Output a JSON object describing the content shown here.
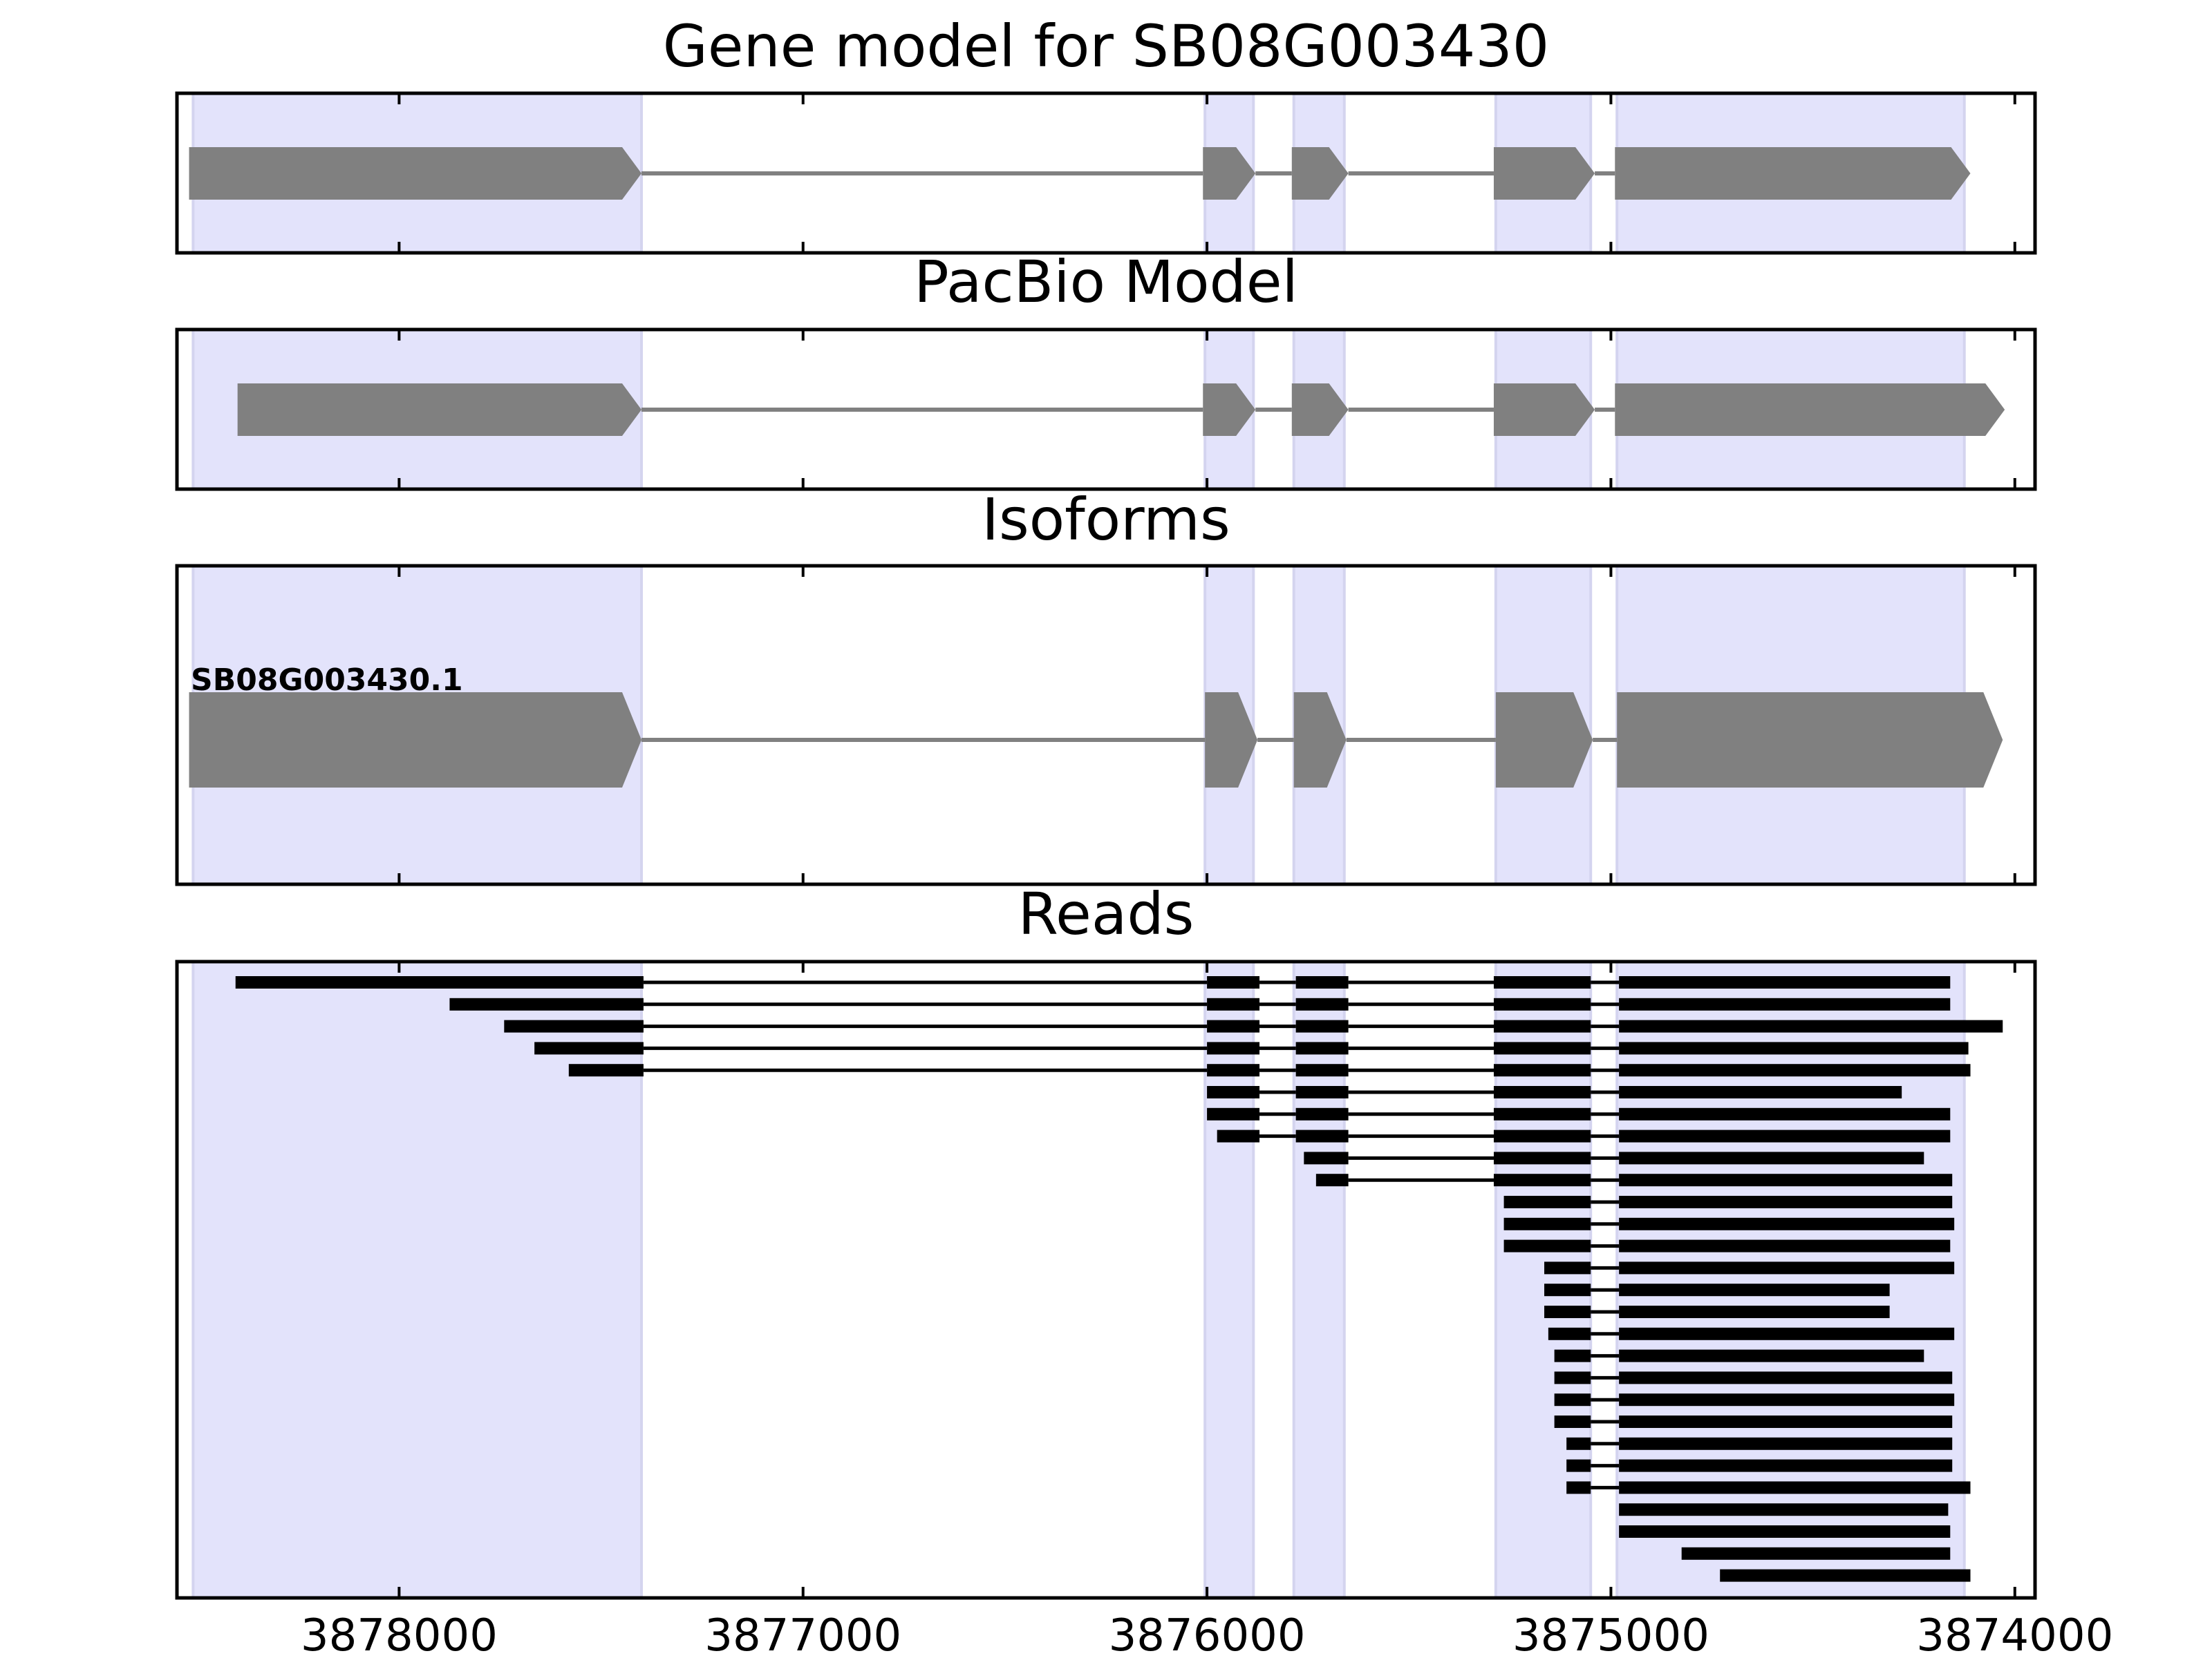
{
  "chart_data": {
    "type": "gene-structure",
    "xlim": [
      3878550,
      3873950
    ],
    "x_ticks": [
      3878000,
      3877000,
      3876000,
      3875000,
      3874000
    ],
    "x_tick_labels": [
      "3878000",
      "3877000",
      "3876000",
      "3875000",
      "3874000"
    ],
    "colors": {
      "exon_fill": "#808080",
      "intron_line": "#808080",
      "highlight": "#e3e3fb",
      "read": "#000000"
    },
    "highlight_regions": [
      [
        3878510,
        3877400
      ],
      [
        3876005,
        3875885
      ],
      [
        3875785,
        3875660
      ],
      [
        3875285,
        3875050
      ],
      [
        3874985,
        3874125
      ]
    ],
    "panels": [
      {
        "title": "Gene model for SB08G003430",
        "kind": "gene",
        "transcripts": [
          {
            "exons": [
              [
                3878520,
                3877400
              ],
              [
                3876010,
                3875880
              ],
              [
                3875790,
                3875650
              ],
              [
                3875290,
                3875040
              ],
              [
                3874990,
                3874110
              ]
            ]
          }
        ]
      },
      {
        "title": "PacBio Model",
        "kind": "gene",
        "transcripts": [
          {
            "exons": [
              [
                3878400,
                3877400
              ],
              [
                3876010,
                3875880
              ],
              [
                3875790,
                3875650
              ],
              [
                3875290,
                3875040
              ],
              [
                3874990,
                3874025
              ]
            ]
          }
        ]
      },
      {
        "title": "Isoforms",
        "kind": "isoforms",
        "transcripts": [
          {
            "label": "SB08G003430.1",
            "exons": [
              [
                3878520,
                3877400
              ],
              [
                3876005,
                3875875
              ],
              [
                3875785,
                3875655
              ],
              [
                3875285,
                3875045
              ],
              [
                3874985,
                3874030
              ]
            ]
          }
        ]
      },
      {
        "title": "Reads",
        "kind": "reads",
        "reads": [
          [
            [
              3878405,
              3877395
            ],
            [
              3876000,
              3875870
            ],
            [
              3875780,
              3875650
            ],
            [
              3875290,
              3875050
            ],
            [
              3874980,
              3874160
            ]
          ],
          [
            [
              3877875,
              3877395
            ],
            [
              3876000,
              3875870
            ],
            [
              3875780,
              3875650
            ],
            [
              3875290,
              3875050
            ],
            [
              3874980,
              3874160
            ]
          ],
          [
            [
              3877740,
              3877395
            ],
            [
              3876000,
              3875870
            ],
            [
              3875780,
              3875650
            ],
            [
              3875290,
              3875050
            ],
            [
              3874980,
              3874030
            ]
          ],
          [
            [
              3877665,
              3877395
            ],
            [
              3876000,
              3875870
            ],
            [
              3875780,
              3875650
            ],
            [
              3875290,
              3875050
            ],
            [
              3874980,
              3874115
            ]
          ],
          [
            [
              3877580,
              3877395
            ],
            [
              3876000,
              3875870
            ],
            [
              3875780,
              3875650
            ],
            [
              3875290,
              3875050
            ],
            [
              3874980,
              3874110
            ]
          ],
          [
            [
              3876000,
              3875870
            ],
            [
              3875780,
              3875650
            ],
            [
              3875290,
              3875050
            ],
            [
              3874980,
              3874280
            ]
          ],
          [
            [
              3876000,
              3875870
            ],
            [
              3875780,
              3875650
            ],
            [
              3875290,
              3875050
            ],
            [
              3874980,
              3874160
            ]
          ],
          [
            [
              3875975,
              3875870
            ],
            [
              3875780,
              3875650
            ],
            [
              3875290,
              3875050
            ],
            [
              3874980,
              3874160
            ]
          ],
          [
            [
              3875760,
              3875650
            ],
            [
              3875290,
              3875050
            ],
            [
              3874980,
              3874225
            ]
          ],
          [
            [
              3875730,
              3875650
            ],
            [
              3875290,
              3875050
            ],
            [
              3874980,
              3874155
            ]
          ],
          [
            [
              3875265,
              3875050
            ],
            [
              3874980,
              3874155
            ]
          ],
          [
            [
              3875265,
              3875050
            ],
            [
              3874980,
              3874150
            ]
          ],
          [
            [
              3875265,
              3875050
            ],
            [
              3874980,
              3874160
            ]
          ],
          [
            [
              3875165,
              3875050
            ],
            [
              3874980,
              3874150
            ]
          ],
          [
            [
              3875165,
              3875050
            ],
            [
              3874980,
              3874310
            ]
          ],
          [
            [
              3875165,
              3875050
            ],
            [
              3874980,
              3874310
            ]
          ],
          [
            [
              3875155,
              3875050
            ],
            [
              3874980,
              3874150
            ]
          ],
          [
            [
              3875140,
              3875050
            ],
            [
              3874980,
              3874225
            ]
          ],
          [
            [
              3875140,
              3875050
            ],
            [
              3874980,
              3874155
            ]
          ],
          [
            [
              3875140,
              3875050
            ],
            [
              3874980,
              3874150
            ]
          ],
          [
            [
              3875140,
              3875050
            ],
            [
              3874980,
              3874155
            ]
          ],
          [
            [
              3875110,
              3875050
            ],
            [
              3874980,
              3874155
            ]
          ],
          [
            [
              3875110,
              3875050
            ],
            [
              3874980,
              3874155
            ]
          ],
          [
            [
              3875110,
              3875050
            ],
            [
              3874980,
              3874110
            ]
          ],
          [
            [
              3874980,
              3874165
            ]
          ],
          [
            [
              3874980,
              3874160
            ]
          ],
          [
            [
              3874825,
              3874160
            ]
          ],
          [
            [
              3874730,
              3874110
            ]
          ]
        ]
      }
    ]
  }
}
